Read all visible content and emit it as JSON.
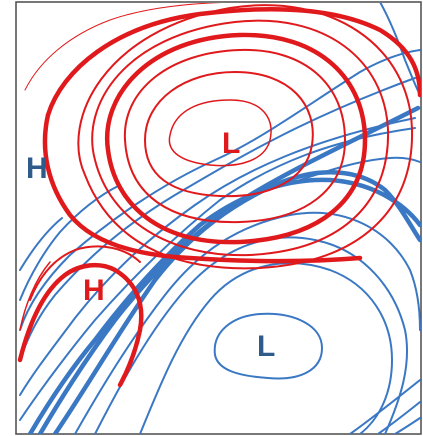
{
  "map": {
    "colors": {
      "background": "#ffffff",
      "frame": "#4a4a4a",
      "blue_system": "#3a78c4",
      "red_system": "#e0191c",
      "blue_label": "#2f5b8a",
      "red_label": "#e0191c"
    },
    "labels": {
      "red_low": "L",
      "blue_low": "L",
      "blue_high": "H",
      "red_high": "H"
    }
  }
}
